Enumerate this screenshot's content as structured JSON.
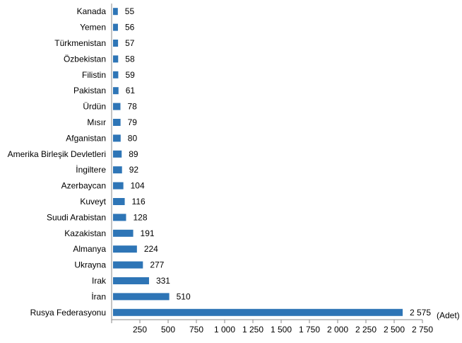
{
  "chart_data": {
    "type": "bar",
    "orientation": "horizontal",
    "categories": [
      "Kanada",
      "Yemen",
      "Türkmenistan",
      "Özbekistan",
      "Filistin",
      "Pakistan",
      "Ürdün",
      "Mısır",
      "Afganistan",
      "Amerika Birleşik Devletleri",
      "İngiltere",
      "Azerbaycan",
      "Kuveyt",
      "Suudi Arabistan",
      "Kazakistan",
      "Almanya",
      "Ukrayna",
      "Irak",
      "İran",
      "Rusya Federasyonu"
    ],
    "values": [
      55,
      56,
      57,
      58,
      59,
      61,
      78,
      79,
      80,
      89,
      92,
      104,
      116,
      128,
      191,
      224,
      277,
      331,
      510,
      2575
    ],
    "value_labels": [
      "55",
      "56",
      "57",
      "58",
      "59",
      "61",
      "78",
      "79",
      "80",
      "89",
      "92",
      "104",
      "116",
      "128",
      "191",
      "224",
      "277",
      "331",
      "510",
      "2 575"
    ],
    "xlim": [
      0,
      2750
    ],
    "x_ticks": [
      250,
      500,
      750,
      1000,
      1250,
      1500,
      1750,
      2000,
      2250,
      2500,
      2750
    ],
    "x_tick_labels": [
      "250",
      "500",
      "750",
      "1 000",
      "1 250",
      "1 500",
      "1 750",
      "2 000",
      "2 250",
      "2 500",
      "2 750"
    ],
    "unit_label": "(Adet)",
    "bar_color": "#2E75B6",
    "grid": false,
    "legend": "none"
  }
}
